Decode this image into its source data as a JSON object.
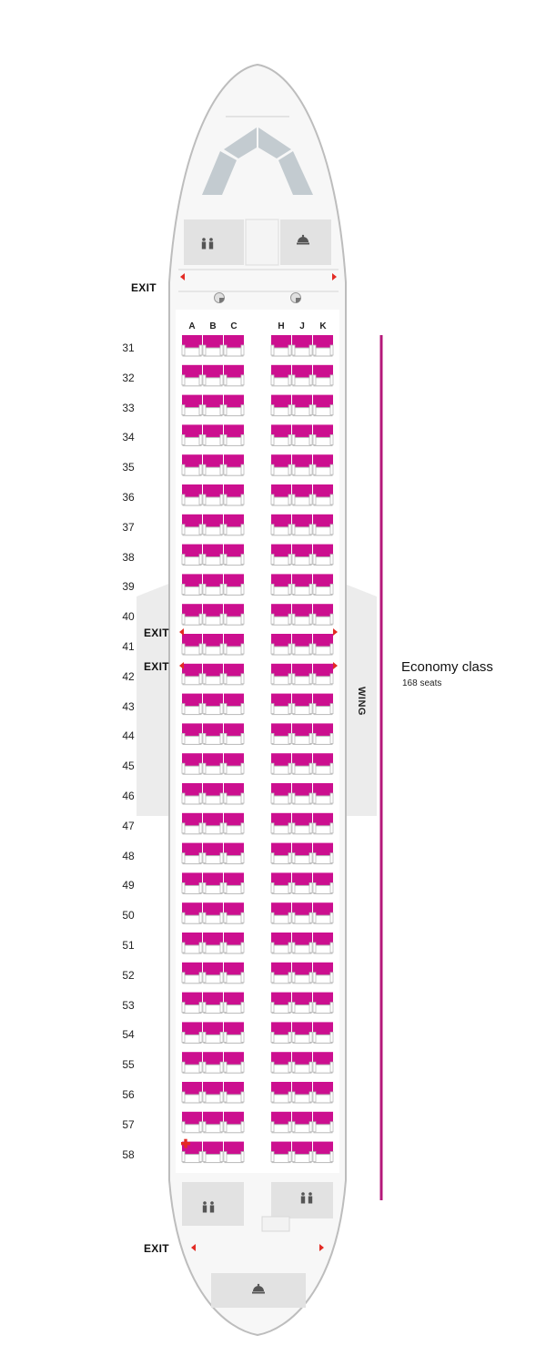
{
  "exit_label": "EXIT",
  "wing_label": "WING",
  "columns": [
    "A",
    "B",
    "C",
    "H",
    "J",
    "K"
  ],
  "rows": [
    "31",
    "32",
    "33",
    "34",
    "35",
    "36",
    "37",
    "38",
    "39",
    "40",
    "41",
    "42",
    "43",
    "44",
    "45",
    "46",
    "47",
    "48",
    "49",
    "50",
    "51",
    "52",
    "53",
    "54",
    "55",
    "56",
    "57",
    "58"
  ],
  "cabin": {
    "name": "Economy class",
    "seat_count": "168 seats"
  },
  "colors": {
    "seat": "#cc0f8f",
    "class_bar": "#b5187a",
    "exit_arrow": "#e32b24",
    "first_aid": "#e32b24",
    "fuselage_fill": "#f2f2f2"
  },
  "icons": [
    "lavatory-icon",
    "galley-icon",
    "crew-seat-icon",
    "exit-arrow-icon",
    "first-aid-icon"
  ]
}
